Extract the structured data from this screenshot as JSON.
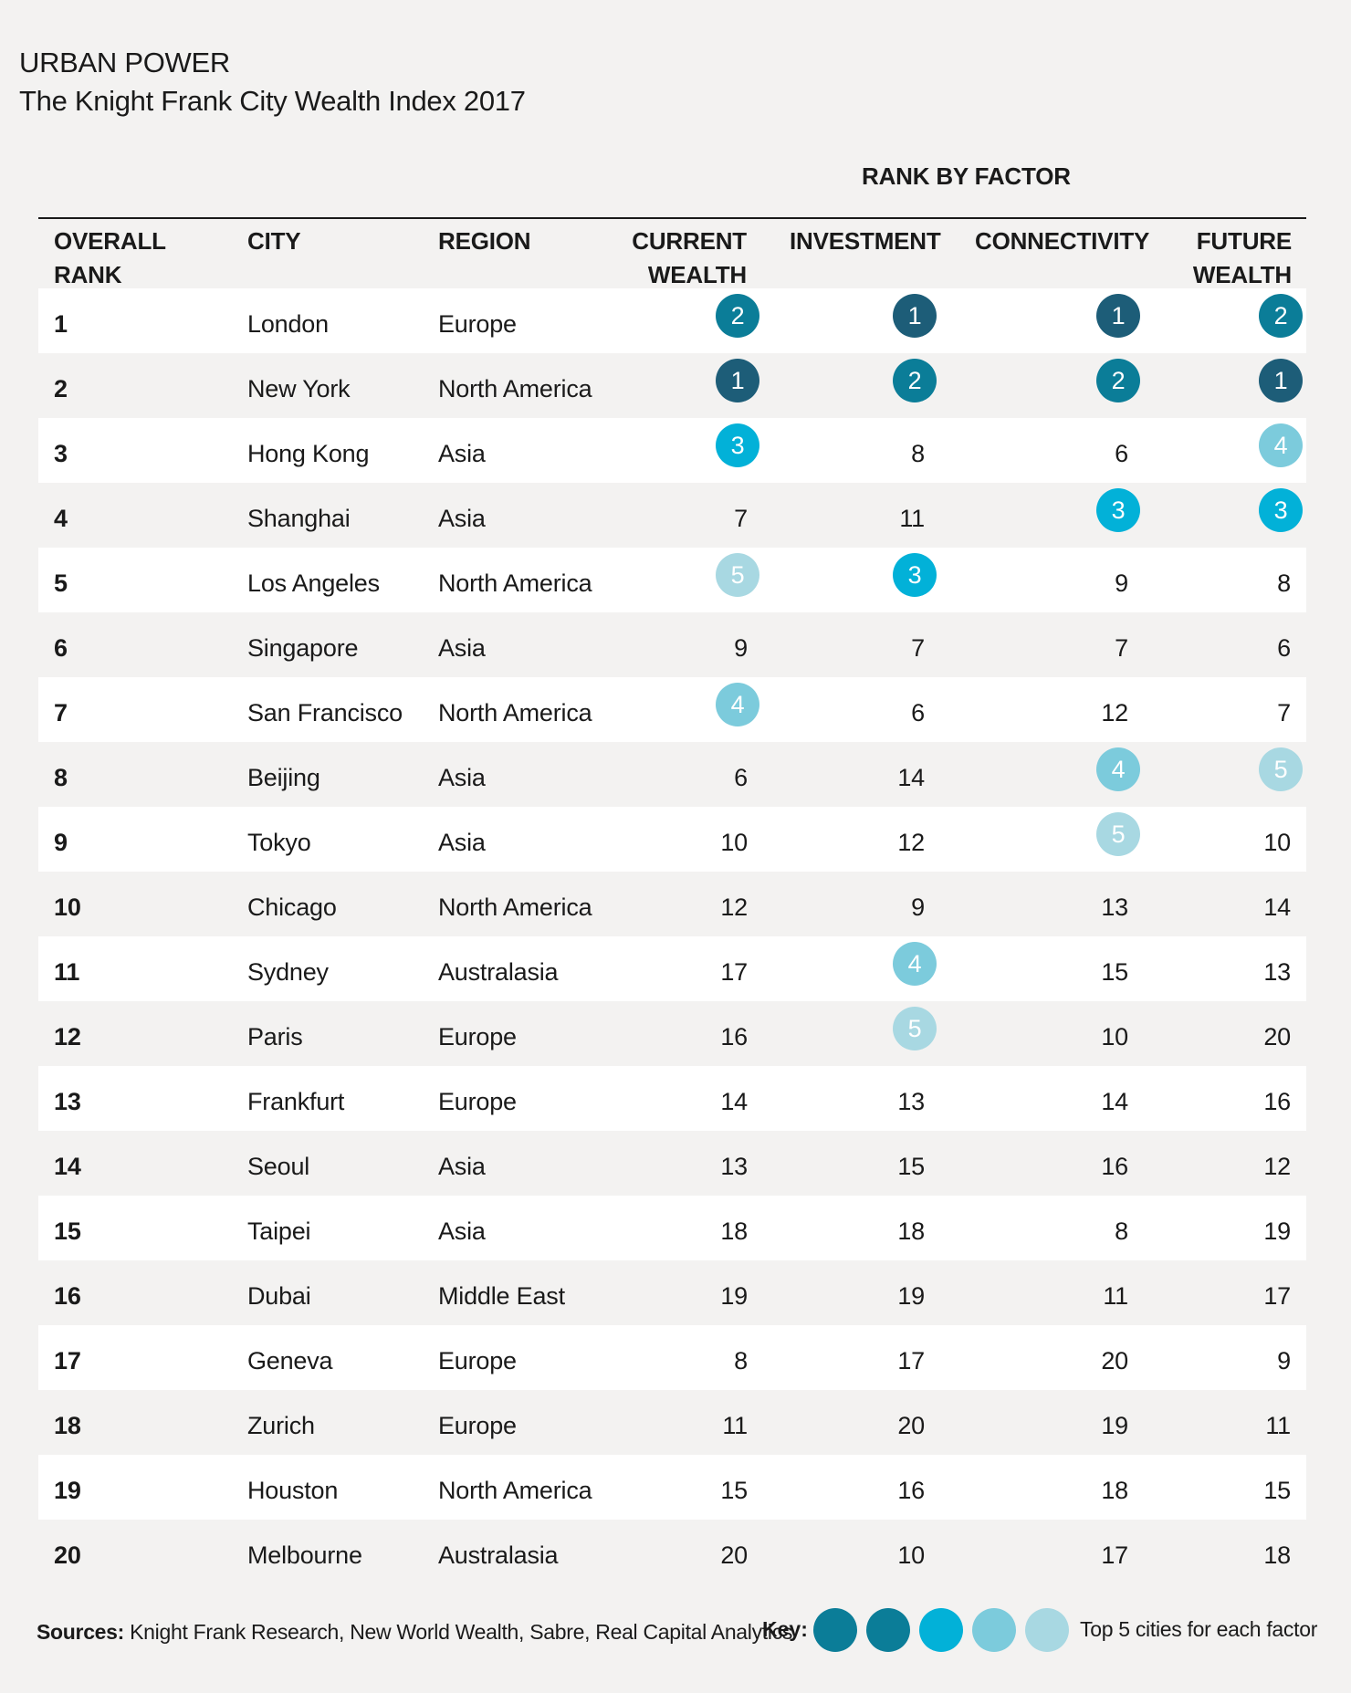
{
  "title": "URBAN POWER",
  "subtitle": "The Knight Frank City Wealth Index 2017",
  "chart_data": {
    "type": "table",
    "group_heading": "RANK BY FACTOR",
    "columns": [
      "OVERALL RANK",
      "CITY",
      "REGION",
      "CURRENT WEALTH",
      "INVESTMENT",
      "CONNECTIVITY",
      "FUTURE WEALTH"
    ],
    "headers": {
      "rank": [
        "OVERALL",
        "RANK"
      ],
      "city": "CITY",
      "region": "REGION",
      "current_wealth": [
        "CURRENT",
        "WEALTH"
      ],
      "investment": "INVESTMENT",
      "connectivity": "CONNECTIVITY",
      "future_wealth": [
        "FUTURE",
        "WEALTH"
      ]
    },
    "rows": [
      {
        "rank": 1,
        "city": "London",
        "region": "Europe",
        "current_wealth": 2,
        "investment": 1,
        "connectivity": 1,
        "future_wealth": 2
      },
      {
        "rank": 2,
        "city": "New York",
        "region": "North America",
        "current_wealth": 1,
        "investment": 2,
        "connectivity": 2,
        "future_wealth": 1
      },
      {
        "rank": 3,
        "city": "Hong Kong",
        "region": "Asia",
        "current_wealth": 3,
        "investment": 8,
        "connectivity": 6,
        "future_wealth": 4
      },
      {
        "rank": 4,
        "city": "Shanghai",
        "region": "Asia",
        "current_wealth": 7,
        "investment": 11,
        "connectivity": 3,
        "future_wealth": 3
      },
      {
        "rank": 5,
        "city": "Los Angeles",
        "region": "North America",
        "current_wealth": 5,
        "investment": 3,
        "connectivity": 9,
        "future_wealth": 8
      },
      {
        "rank": 6,
        "city": "Singapore",
        "region": "Asia",
        "current_wealth": 9,
        "investment": 7,
        "connectivity": 7,
        "future_wealth": 6
      },
      {
        "rank": 7,
        "city": "San Francisco",
        "region": "North America",
        "current_wealth": 4,
        "investment": 6,
        "connectivity": 12,
        "future_wealth": 7
      },
      {
        "rank": 8,
        "city": "Beijing",
        "region": "Asia",
        "current_wealth": 6,
        "investment": 14,
        "connectivity": 4,
        "future_wealth": 5
      },
      {
        "rank": 9,
        "city": "Tokyo",
        "region": "Asia",
        "current_wealth": 10,
        "investment": 12,
        "connectivity": 5,
        "future_wealth": 10
      },
      {
        "rank": 10,
        "city": "Chicago",
        "region": "North America",
        "current_wealth": 12,
        "investment": 9,
        "connectivity": 13,
        "future_wealth": 14
      },
      {
        "rank": 11,
        "city": "Sydney",
        "region": "Australasia",
        "current_wealth": 17,
        "investment": 4,
        "connectivity": 15,
        "future_wealth": 13
      },
      {
        "rank": 12,
        "city": "Paris",
        "region": "Europe",
        "current_wealth": 16,
        "investment": 5,
        "connectivity": 10,
        "future_wealth": 20
      },
      {
        "rank": 13,
        "city": "Frankfurt",
        "region": "Europe",
        "current_wealth": 14,
        "investment": 13,
        "connectivity": 14,
        "future_wealth": 16
      },
      {
        "rank": 14,
        "city": "Seoul",
        "region": "Asia",
        "current_wealth": 13,
        "investment": 15,
        "connectivity": 16,
        "future_wealth": 12
      },
      {
        "rank": 15,
        "city": "Taipei",
        "region": "Asia",
        "current_wealth": 18,
        "investment": 18,
        "connectivity": 8,
        "future_wealth": 19
      },
      {
        "rank": 16,
        "city": "Dubai",
        "region": "Middle East",
        "current_wealth": 19,
        "investment": 19,
        "connectivity": 11,
        "future_wealth": 17
      },
      {
        "rank": 17,
        "city": "Geneva",
        "region": "Europe",
        "current_wealth": 8,
        "investment": 17,
        "connectivity": 20,
        "future_wealth": 9
      },
      {
        "rank": 18,
        "city": "Zurich",
        "region": "Europe",
        "current_wealth": 11,
        "investment": 20,
        "connectivity": 19,
        "future_wealth": 11
      },
      {
        "rank": 19,
        "city": "Houston",
        "region": "North America",
        "current_wealth": 15,
        "investment": 16,
        "connectivity": 18,
        "future_wealth": 15
      },
      {
        "rank": 20,
        "city": "Melbourne",
        "region": "Australasia",
        "current_wealth": 20,
        "investment": 10,
        "connectivity": 17,
        "future_wealth": 18
      }
    ],
    "highlight_colors": {
      "1": "#1d5d78",
      "2": "#0b7d98",
      "3": "#02b1d8",
      "4": "#7ccbdc",
      "5": "#a8d8e2"
    }
  },
  "footer": {
    "sources_label": "Sources:",
    "sources_text": "Knight Frank Research, New World Wealth, Sabre, Real Capital Analytics",
    "key_label": "Key:",
    "key_colors": [
      "#0b7d98",
      "#0b7d98",
      "#02b1d8",
      "#7ccbdc",
      "#a8d8e2"
    ],
    "key_text": "Top 5 cities for each factor"
  },
  "colors": {
    "background": "#f3f2f1",
    "row_alt": "#ffffff",
    "text": "#1a1a1a"
  }
}
